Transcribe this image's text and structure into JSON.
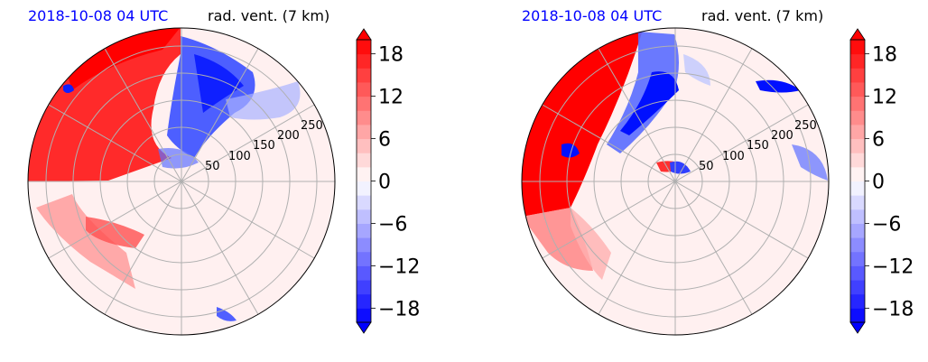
{
  "colors": {
    "title_date": "#0000ff",
    "red": "#ff0000",
    "blue": "#0000ff",
    "neutral": "#fff0f0",
    "grid": "#b0b0b0"
  },
  "chart_data": [
    {
      "type": "heatmap",
      "projection": "polar",
      "title_left": "2018-10-08 04 UTC",
      "title_right": "rad. vent. (7 km)",
      "radial_ticks": [
        50,
        100,
        150,
        200,
        250
      ],
      "rmax": 280,
      "angular_gridlines_deg": [
        0,
        30,
        60,
        90,
        120,
        150,
        180,
        210,
        240,
        270,
        300,
        330
      ],
      "colorbar": {
        "ticks": [
          18,
          12,
          6,
          0,
          -6,
          -12,
          -18
        ],
        "tick_labels": [
          "18",
          "12",
          "6",
          "0",
          "−6",
          "−12",
          "−18"
        ],
        "vmin": -20,
        "vmax": 20,
        "levels": 20,
        "colormap": "bwr",
        "extend": "both"
      },
      "dominant_features": [
        {
          "sign": "positive",
          "region": "west / northwest",
          "approx_value": 18
        },
        {
          "sign": "negative",
          "region": "north / north-northeast",
          "approx_value": -14
        },
        {
          "sign": "near-zero",
          "region": "south / east",
          "approx_value": 0
        }
      ]
    },
    {
      "type": "heatmap",
      "projection": "polar",
      "title_left": "2018-10-08 04 UTC",
      "title_right": "rad. vent. (7 km)",
      "radial_ticks": [
        50,
        100,
        150,
        200,
        250
      ],
      "rmax": 280,
      "angular_gridlines_deg": [
        0,
        30,
        60,
        90,
        120,
        150,
        180,
        210,
        240,
        270,
        300,
        330
      ],
      "colorbar": {
        "ticks": [
          18,
          12,
          6,
          0,
          -6,
          -12,
          -18
        ],
        "tick_labels": [
          "18",
          "12",
          "6",
          "0",
          "−6",
          "−12",
          "−18"
        ],
        "vmin": -20,
        "vmax": 20,
        "levels": 20,
        "colormap": "bwr",
        "extend": "both"
      },
      "dominant_features": [
        {
          "sign": "positive",
          "region": "west",
          "approx_value": 18
        },
        {
          "sign": "negative",
          "region": "north band and east edge",
          "approx_value": -12
        },
        {
          "sign": "near-zero",
          "region": "center / south / east",
          "approx_value": 0
        }
      ]
    }
  ]
}
